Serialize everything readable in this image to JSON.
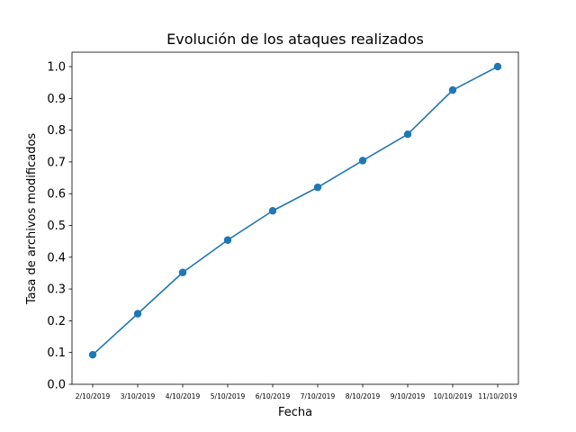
{
  "chart_data": {
    "type": "line",
    "title": "Evolución de los ataques realizados",
    "xlabel": "Fecha",
    "ylabel": "Tasa de archivos modificados",
    "categories": [
      "2/10/2019",
      "3/10/2019",
      "4/10/2019",
      "5/10/2019",
      "6/10/2019",
      "7/10/2019",
      "8/10/2019",
      "9/10/2019",
      "10/10/2019",
      "11/10/2019"
    ],
    "series": [
      {
        "values": [
          0.093,
          0.222,
          0.352,
          0.454,
          0.546,
          0.62,
          0.704,
          0.787,
          0.926,
          1.0
        ],
        "color": "#1f77b4",
        "marker": "circle"
      }
    ],
    "ylim": [
      0.0,
      1.0
    ],
    "yticks": [
      "0.0",
      "0.1",
      "0.2",
      "0.3",
      "0.4",
      "0.5",
      "0.6",
      "0.7",
      "0.8",
      "0.9",
      "1.0"
    ],
    "grid": false,
    "legend": "none"
  }
}
